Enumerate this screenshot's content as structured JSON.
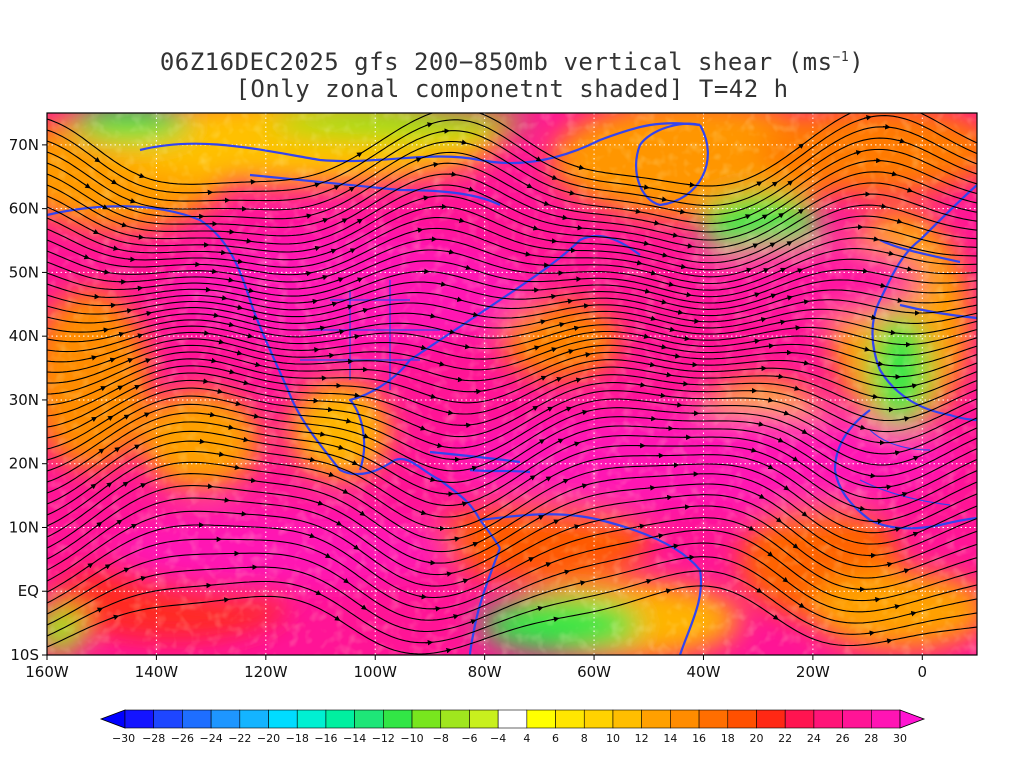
{
  "title": {
    "line1_prefix": "06Z16DEC2025 gfs 200−850mb vertical shear (ms",
    "line1_sup": "−1",
    "line1_suffix": ")",
    "line2": "[Only zonal componetnt shaded] T=42 h"
  },
  "map": {
    "lon_range": [
      -160,
      10
    ],
    "lat_range": [
      -10,
      75
    ],
    "lat_labels": [
      {
        "lat": 70,
        "text": "70N"
      },
      {
        "lat": 60,
        "text": "60N"
      },
      {
        "lat": 50,
        "text": "50N"
      },
      {
        "lat": 40,
        "text": "40N"
      },
      {
        "lat": 30,
        "text": "30N"
      },
      {
        "lat": 20,
        "text": "20N"
      },
      {
        "lat": 10,
        "text": "10N"
      },
      {
        "lat": 0,
        "text": "EQ"
      },
      {
        "lat": -10,
        "text": "10S"
      }
    ],
    "lon_labels": [
      {
        "lon": -160,
        "text": "160W"
      },
      {
        "lon": -140,
        "text": "140W"
      },
      {
        "lon": -120,
        "text": "120W"
      },
      {
        "lon": -100,
        "text": "100W"
      },
      {
        "lon": -80,
        "text": "80W"
      },
      {
        "lon": -60,
        "text": "60W"
      },
      {
        "lon": -40,
        "text": "40W"
      },
      {
        "lon": -20,
        "text": "20W"
      },
      {
        "lon": 0,
        "text": "0"
      }
    ],
    "grid_lines": "dotted-white",
    "streamlines": "black-with-arrows",
    "coastline_color": "#3344ee"
  },
  "colorbar": {
    "labels": [
      "−30",
      "−28",
      "−26",
      "−24",
      "−22",
      "−20",
      "−18",
      "−16",
      "−14",
      "−12",
      "−10",
      "−8",
      "−6",
      "−4",
      "4",
      "6",
      "8",
      "10",
      "12",
      "14",
      "16",
      "18",
      "20",
      "22",
      "24",
      "26",
      "28",
      "30"
    ],
    "colors": [
      "#1414ff",
      "#1e46ff",
      "#1e6eff",
      "#1e96ff",
      "#14b4ff",
      "#00dcff",
      "#00f0d2",
      "#00f0a0",
      "#1ee678",
      "#32e646",
      "#78e61e",
      "#a0e61e",
      "#c8f01e",
      "#ffffff",
      "#ffff00",
      "#ffe600",
      "#ffd200",
      "#ffbe00",
      "#ffa000",
      "#ff8c00",
      "#ff6e00",
      "#ff5000",
      "#ff2814",
      "#ff1450",
      "#ff1478",
      "#ff1496",
      "#ff14b4"
    ]
  }
}
